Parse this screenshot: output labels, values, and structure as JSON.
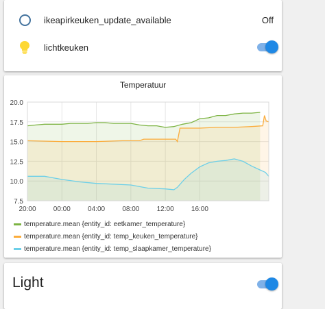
{
  "entities": [
    {
      "name": "ikeapirkeuken_update_available",
      "state": "Off",
      "icon": "circle-outline-icon"
    },
    {
      "name": "lichtkeuken",
      "toggle_on": true,
      "icon": "lightbulb-icon"
    }
  ],
  "colors": {
    "accent": "#1e88e5",
    "bulb": "#fdd835",
    "circle": "#44739e"
  },
  "chart_data": {
    "type": "line",
    "title": "Temperatuur",
    "x_ticks": [
      "20:00",
      "00:00",
      "04:00",
      "08:00",
      "12:00",
      "16:00"
    ],
    "y_ticks": [
      "20.0",
      "17.5",
      "15.0",
      "12.5",
      "10.0",
      "7.5"
    ],
    "ylim": [
      7.5,
      20.0
    ],
    "x_unit": "hours since 20:00",
    "grid": true,
    "legend_position": "bottom",
    "series": [
      {
        "name": "temperature.mean {entity_id: eetkamer_temperature}",
        "color": "#7cb342",
        "points": [
          [
            0,
            17.0
          ],
          [
            1,
            17.1
          ],
          [
            2,
            17.2
          ],
          [
            3,
            17.2
          ],
          [
            4,
            17.2
          ],
          [
            5,
            17.3
          ],
          [
            6,
            17.3
          ],
          [
            7,
            17.3
          ],
          [
            8,
            17.4
          ],
          [
            9,
            17.4
          ],
          [
            10,
            17.3
          ],
          [
            11,
            17.3
          ],
          [
            12,
            17.3
          ],
          [
            13,
            17.1
          ],
          [
            14,
            17.0
          ],
          [
            15,
            17.0
          ],
          [
            16,
            16.8
          ],
          [
            17,
            16.9
          ],
          [
            18,
            17.2
          ],
          [
            19,
            17.4
          ],
          [
            20,
            17.9
          ],
          [
            21,
            18.0
          ],
          [
            22,
            18.3
          ],
          [
            23,
            18.3
          ],
          [
            24,
            18.5
          ],
          [
            25,
            18.6
          ],
          [
            26,
            18.6
          ],
          [
            27,
            18.7
          ]
        ]
      },
      {
        "name": "temperature.mean {entity_id: temp_keuken_temperature}",
        "color": "#fbac3b",
        "points": [
          [
            0,
            15.1
          ],
          [
            4,
            15.0
          ],
          [
            8,
            15.0
          ],
          [
            11,
            15.1
          ],
          [
            13,
            15.1
          ],
          [
            13.5,
            15.3
          ],
          [
            15.5,
            15.3
          ],
          [
            17.2,
            15.3
          ],
          [
            17.4,
            15.0
          ],
          [
            17.7,
            16.7
          ],
          [
            20,
            16.7
          ],
          [
            22,
            16.8
          ],
          [
            24,
            16.8
          ],
          [
            26,
            16.9
          ],
          [
            27.3,
            17.0
          ],
          [
            27.5,
            18.3
          ],
          [
            27.7,
            17.6
          ],
          [
            28,
            17.5
          ]
        ]
      },
      {
        "name": "temperature.mean {entity_id: temp_slaapkamer_temperature}",
        "color": "#6ccfe8",
        "points": [
          [
            0,
            10.6
          ],
          [
            2,
            10.6
          ],
          [
            3,
            10.4
          ],
          [
            4,
            10.2
          ],
          [
            6,
            9.9
          ],
          [
            8,
            9.7
          ],
          [
            10,
            9.6
          ],
          [
            12,
            9.5
          ],
          [
            14,
            9.1
          ],
          [
            16,
            9.0
          ],
          [
            17,
            8.9
          ],
          [
            17.4,
            9.2
          ],
          [
            18.2,
            10.2
          ],
          [
            19,
            11.0
          ],
          [
            20,
            11.8
          ],
          [
            21,
            12.3
          ],
          [
            22,
            12.5
          ],
          [
            23,
            12.6
          ],
          [
            24,
            12.8
          ],
          [
            25,
            12.5
          ],
          [
            26,
            11.9
          ],
          [
            27,
            11.4
          ],
          [
            27.6,
            11.1
          ],
          [
            28,
            10.6
          ]
        ]
      }
    ]
  },
  "light_card": {
    "title": "Light",
    "toggle_on": true
  }
}
